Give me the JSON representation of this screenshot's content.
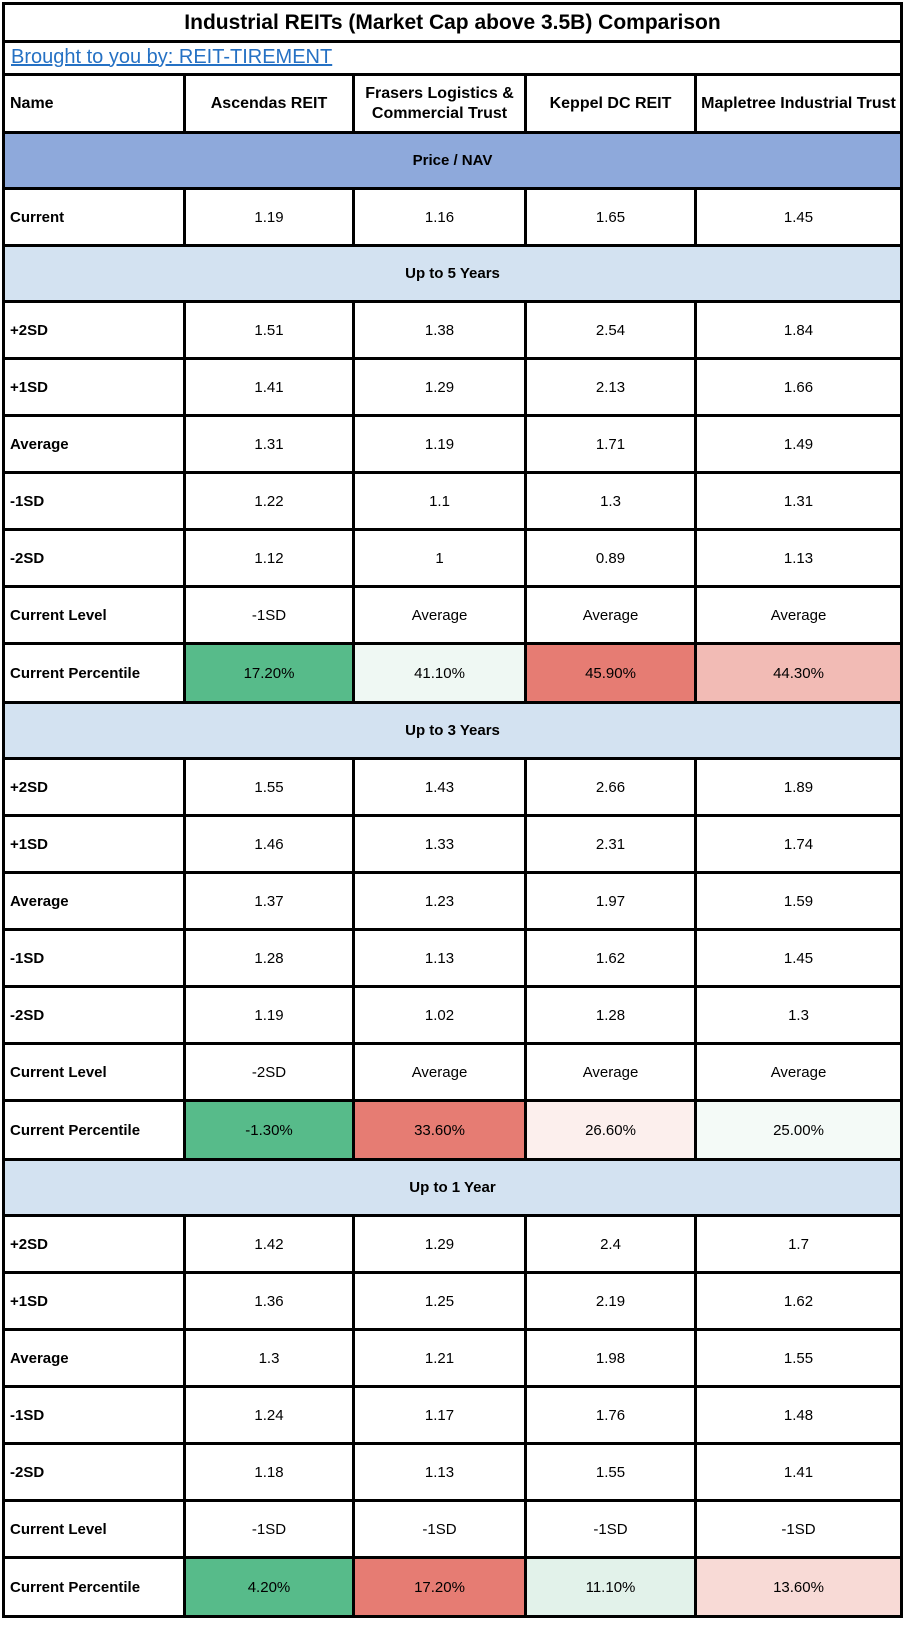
{
  "title": "Industrial REITs (Market Cap above 3.5B) Comparison",
  "byline": {
    "link_text": "Brought to you by: REIT-TIREMENT"
  },
  "columns": [
    "Name",
    "Ascendas REIT",
    "Frasers Logistics & Commercial Trust",
    "Keppel DC REIT",
    "Mapletree Industrial Trust"
  ],
  "colors": {
    "heading_primary_bg": "#8EA9DB",
    "heading_secondary_bg": "#D3E2F1",
    "link": "#2571C4",
    "border": "#000000",
    "green_full": "#57BB8A",
    "red_full": "#E67C73"
  },
  "groups": [
    {
      "heading": "Price / NAV",
      "heading_style": "primary",
      "rows": [
        {
          "label": "Current",
          "values": [
            "1.19",
            "1.16",
            "1.65",
            "1.45"
          ]
        }
      ]
    },
    {
      "heading": "Up to 5 Years",
      "heading_style": "secondary",
      "rows": [
        {
          "label": "+2SD",
          "values": [
            "1.51",
            "1.38",
            "2.54",
            "1.84"
          ]
        },
        {
          "label": "+1SD",
          "values": [
            "1.41",
            "1.29",
            "2.13",
            "1.66"
          ]
        },
        {
          "label": "Average",
          "values": [
            "1.31",
            "1.19",
            "1.71",
            "1.49"
          ]
        },
        {
          "label": "-1SD",
          "values": [
            "1.22",
            "1.1",
            "1.3",
            "1.31"
          ]
        },
        {
          "label": "-2SD",
          "values": [
            "1.12",
            "1",
            "0.89",
            "1.13"
          ]
        },
        {
          "label": "Current Level",
          "values": [
            "-1SD",
            "Average",
            "Average",
            "Average"
          ]
        }
      ],
      "percentile": {
        "label": "Current Percentile",
        "values": [
          "17.20%",
          "41.10%",
          "45.90%",
          "44.30%"
        ],
        "colors": [
          "#57BB8A",
          "#EFF8F3",
          "#E67C73",
          "#F2BBB5"
        ]
      }
    },
    {
      "heading": "Up to 3 Years",
      "heading_style": "secondary",
      "rows": [
        {
          "label": "+2SD",
          "values": [
            "1.55",
            "1.43",
            "2.66",
            "1.89"
          ]
        },
        {
          "label": "+1SD",
          "values": [
            "1.46",
            "1.33",
            "2.31",
            "1.74"
          ]
        },
        {
          "label": "Average",
          "values": [
            "1.37",
            "1.23",
            "1.97",
            "1.59"
          ]
        },
        {
          "label": "-1SD",
          "values": [
            "1.28",
            "1.13",
            "1.62",
            "1.45"
          ]
        },
        {
          "label": "-2SD",
          "values": [
            "1.19",
            "1.02",
            "1.28",
            "1.3"
          ]
        },
        {
          "label": "Current Level",
          "values": [
            "-2SD",
            "Average",
            "Average",
            "Average"
          ]
        }
      ],
      "percentile": {
        "label": "Current Percentile",
        "values": [
          "-1.30%",
          "33.60%",
          "26.60%",
          "25.00%"
        ],
        "colors": [
          "#57BB8A",
          "#E67C73",
          "#FCEFED",
          "#F4FAF7"
        ]
      }
    },
    {
      "heading": "Up to 1 Year",
      "heading_style": "secondary",
      "rows": [
        {
          "label": "+2SD",
          "values": [
            "1.42",
            "1.29",
            "2.4",
            "1.7"
          ]
        },
        {
          "label": "+1SD",
          "values": [
            "1.36",
            "1.25",
            "2.19",
            "1.62"
          ]
        },
        {
          "label": "Average",
          "values": [
            "1.3",
            "1.21",
            "1.98",
            "1.55"
          ]
        },
        {
          "label": "-1SD",
          "values": [
            "1.24",
            "1.17",
            "1.76",
            "1.48"
          ]
        },
        {
          "label": "-2SD",
          "values": [
            "1.18",
            "1.13",
            "1.55",
            "1.41"
          ]
        },
        {
          "label": "Current Level",
          "values": [
            "-1SD",
            "-1SD",
            "-1SD",
            "-1SD"
          ]
        }
      ],
      "percentile": {
        "label": "Current Percentile",
        "values": [
          "4.20%",
          "17.20%",
          "11.10%",
          "13.60%"
        ],
        "colors": [
          "#57BB8A",
          "#E67C73",
          "#E2F2EA",
          "#F8DAD6"
        ]
      }
    }
  ]
}
